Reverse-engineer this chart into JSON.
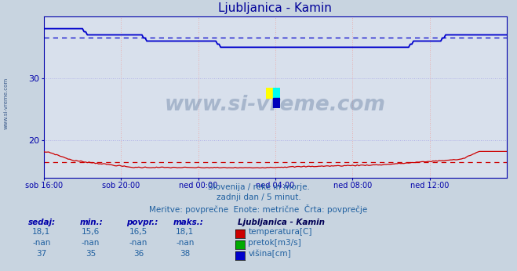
{
  "title": "Ljubljanica - Kamin",
  "title_color": "#000099",
  "bg_color": "#c8d4e0",
  "plot_bg_color": "#d8e0ec",
  "grid_v_color": "#e8b0b0",
  "grid_h_color": "#b0b0e8",
  "ylim": [
    14.0,
    40.0
  ],
  "yticks": [
    20,
    30
  ],
  "xtick_labels": [
    "sob 16:00",
    "sob 20:00",
    "ned 00:00",
    "ned 04:00",
    "ned 08:00",
    "ned 12:00"
  ],
  "xtick_positions": [
    0,
    48,
    96,
    144,
    192,
    240
  ],
  "total_points": 289,
  "temp_color": "#cc0000",
  "height_color": "#0000cc",
  "temp_avg": 16.5,
  "height_avg": 36.5,
  "watermark": "www.si-vreme.com",
  "watermark_color": "#2a4a7a",
  "sub_text1": "Slovenija / reke in morje.",
  "sub_text2": "zadnji dan / 5 minut.",
  "sub_text3": "Meritve: povprečne  Enote: metrične  Črta: povprečje",
  "legend_title": "Ljubljanica - Kamin",
  "legend_items": [
    {
      "label": "temperatura[C]",
      "color": "#cc0000"
    },
    {
      "label": "pretok[m3/s]",
      "color": "#00aa00"
    },
    {
      "label": "višina[cm]",
      "color": "#0000cc"
    }
  ],
  "table_headers": [
    "sedaj:",
    "min.:",
    "povpr.:",
    "maks.:"
  ],
  "table_rows": [
    [
      "18,1",
      "15,6",
      "16,5",
      "18,1"
    ],
    [
      "-nan",
      "-nan",
      "-nan",
      "-nan"
    ],
    [
      "37",
      "35",
      "36",
      "38"
    ]
  ],
  "sidebar_text": "www.si-vreme.com",
  "sidebar_color": "#3a5a8a"
}
